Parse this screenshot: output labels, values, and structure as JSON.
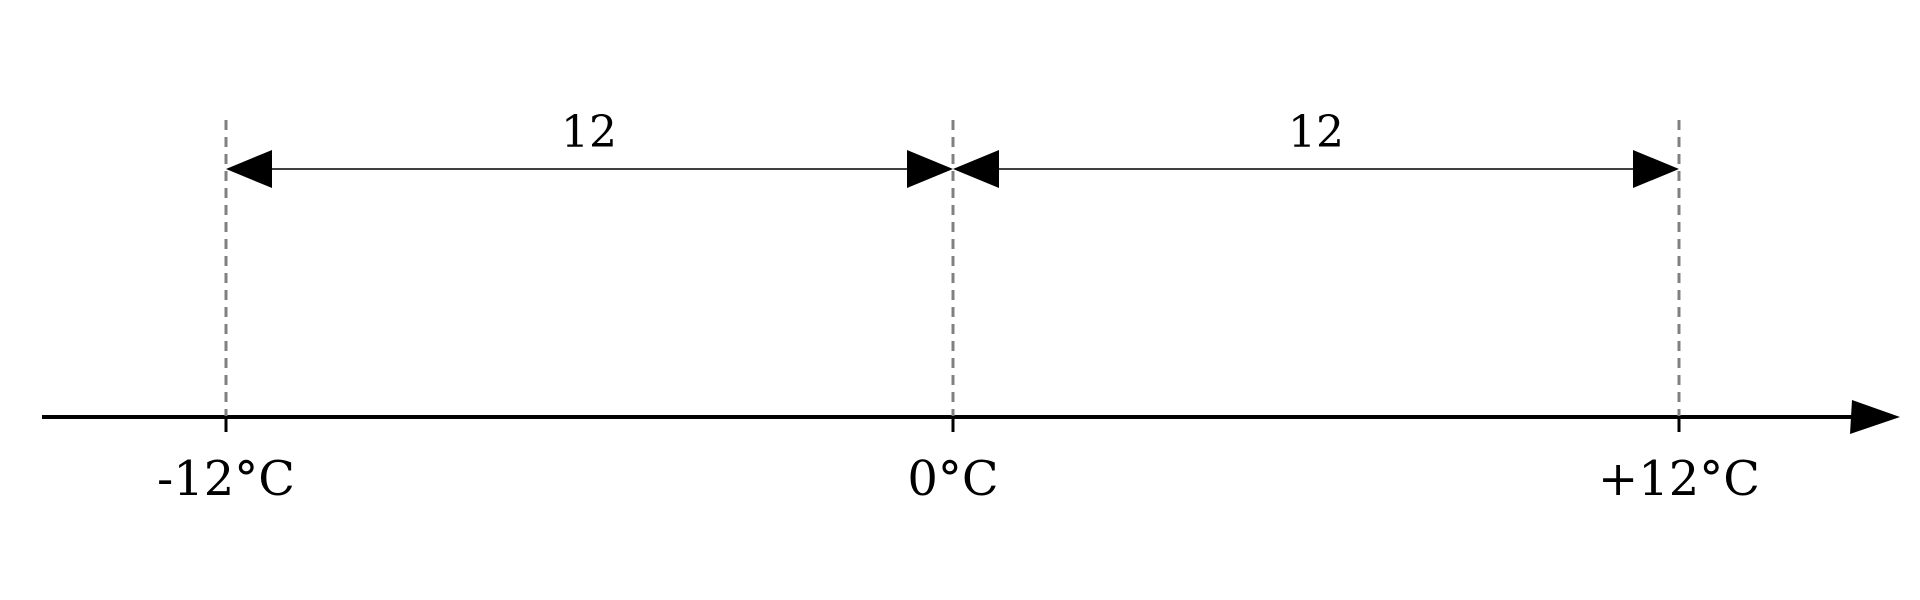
{
  "diagram": {
    "axis_labels": [
      "-12°C",
      "0°C",
      "+12°C"
    ],
    "interval_labels": [
      "12",
      "12"
    ],
    "colors": {
      "line": "#000000",
      "guide": "#808080",
      "background": "#ffffff"
    }
  }
}
